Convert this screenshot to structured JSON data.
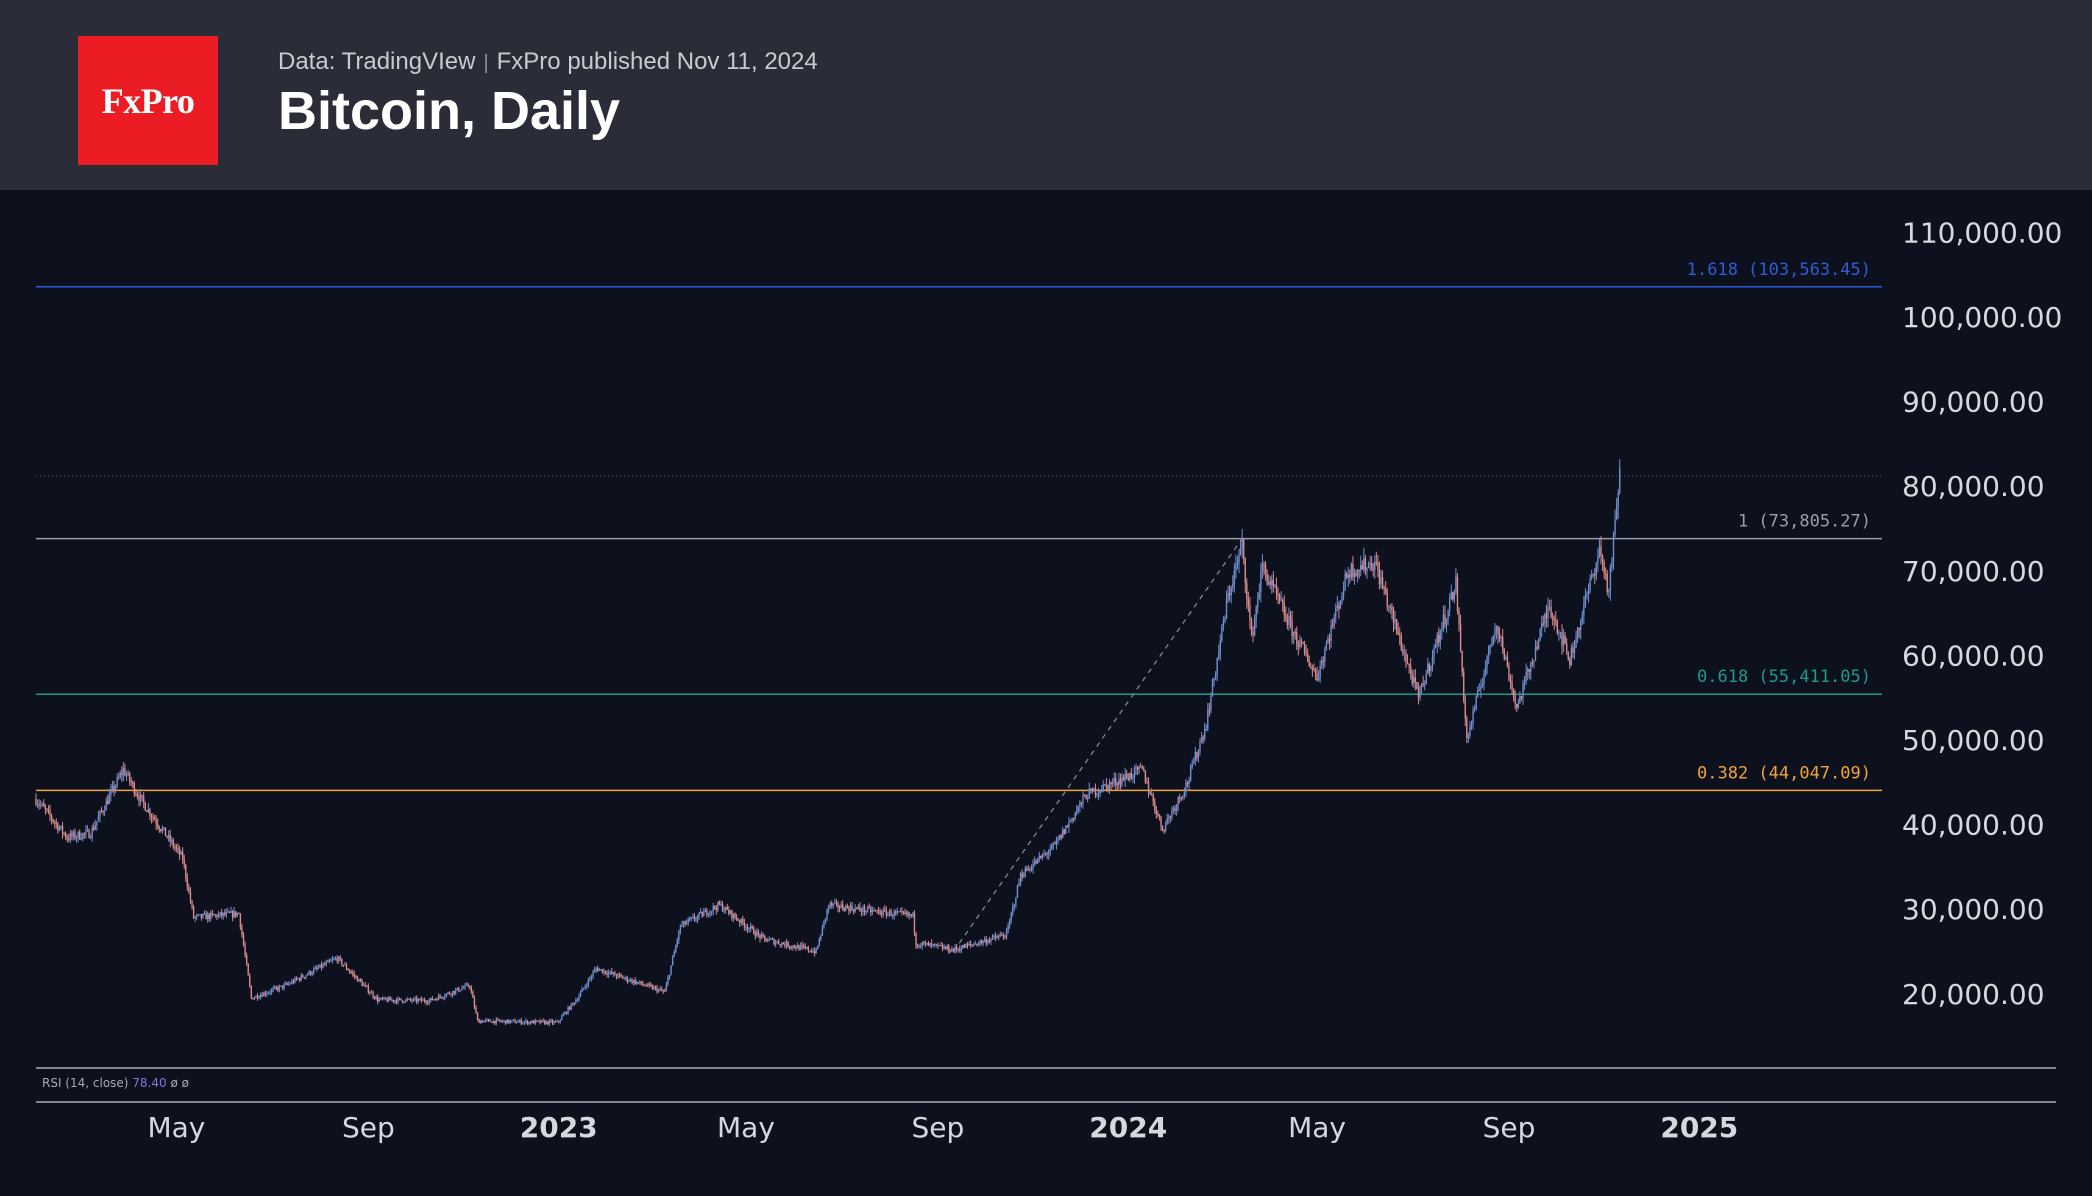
{
  "header": {
    "logo_text": "FxPro",
    "source": "Data: TradingVIew",
    "publisher": "FxPro published Nov 11, 2024",
    "title": "Bitcoin, Daily"
  },
  "chart_data": {
    "type": "candlestick",
    "title": "Bitcoin, Daily",
    "ylim": [
      11000,
      115000
    ],
    "y_ticks": [
      "110,000.00",
      "100,000.00",
      "90,000.00",
      "80,000.00",
      "70,000.00",
      "60,000.00",
      "50,000.00",
      "40,000.00",
      "30,000.00",
      "20,000.00"
    ],
    "y_tick_values": [
      110000,
      100000,
      90000,
      80000,
      70000,
      60000,
      50000,
      40000,
      30000,
      20000
    ],
    "x_range": [
      "2022-01-31",
      "2025-04-30"
    ],
    "x_ticks": [
      {
        "label": "May",
        "date": "2022-05-01",
        "year": false
      },
      {
        "label": "Sep",
        "date": "2022-09-01",
        "year": false
      },
      {
        "label": "2023",
        "date": "2023-01-01",
        "year": true
      },
      {
        "label": "May",
        "date": "2023-05-01",
        "year": false
      },
      {
        "label": "Sep",
        "date": "2023-09-01",
        "year": false
      },
      {
        "label": "2024",
        "date": "2024-01-01",
        "year": true
      },
      {
        "label": "May",
        "date": "2024-05-01",
        "year": false
      },
      {
        "label": "Sep",
        "date": "2024-09-01",
        "year": false
      },
      {
        "label": "2025",
        "date": "2025-01-01",
        "year": true
      }
    ],
    "price_path": [
      [
        "2022-01-31",
        43000
      ],
      [
        "2022-02-20",
        38500
      ],
      [
        "2022-03-07",
        39000
      ],
      [
        "2022-03-28",
        46500
      ],
      [
        "2022-04-08",
        43000
      ],
      [
        "2022-05-05",
        36000
      ],
      [
        "2022-05-12",
        29000
      ],
      [
        "2022-06-10",
        29500
      ],
      [
        "2022-06-18",
        19500
      ],
      [
        "2022-07-10",
        21000
      ],
      [
        "2022-08-12",
        24200
      ],
      [
        "2022-09-07",
        19300
      ],
      [
        "2022-10-10",
        19200
      ],
      [
        "2022-11-05",
        21000
      ],
      [
        "2022-11-10",
        16800
      ],
      [
        "2022-12-31",
        16600
      ],
      [
        "2023-01-13",
        19500
      ],
      [
        "2023-01-25",
        23000
      ],
      [
        "2023-03-10",
        20200
      ],
      [
        "2023-03-20",
        28000
      ],
      [
        "2023-04-14",
        30500
      ],
      [
        "2023-05-12",
        26500
      ],
      [
        "2023-06-15",
        25000
      ],
      [
        "2023-06-23",
        30500
      ],
      [
        "2023-07-20",
        29800
      ],
      [
        "2023-08-16",
        29200
      ],
      [
        "2023-08-18",
        26000
      ],
      [
        "2023-09-11",
        25200
      ],
      [
        "2023-10-15",
        27000
      ],
      [
        "2023-10-24",
        34000
      ],
      [
        "2023-11-15",
        37500
      ],
      [
        "2023-12-05",
        43500
      ],
      [
        "2024-01-10",
        46500
      ],
      [
        "2024-01-23",
        39500
      ],
      [
        "2024-02-08",
        45000
      ],
      [
        "2024-02-20",
        52000
      ],
      [
        "2024-03-05",
        67000
      ],
      [
        "2024-03-14",
        73000
      ],
      [
        "2024-03-20",
        62000
      ],
      [
        "2024-03-27",
        70500
      ],
      [
        "2024-04-15",
        63000
      ],
      [
        "2024-05-01",
        57500
      ],
      [
        "2024-05-21",
        70000
      ],
      [
        "2024-06-07",
        71000
      ],
      [
        "2024-07-05",
        55000
      ],
      [
        "2024-07-29",
        68500
      ],
      [
        "2024-08-05",
        50000
      ],
      [
        "2024-08-24",
        64000
      ],
      [
        "2024-09-06",
        53800
      ],
      [
        "2024-09-27",
        66000
      ],
      [
        "2024-10-10",
        59500
      ],
      [
        "2024-10-29",
        72500
      ],
      [
        "2024-11-04",
        67500
      ],
      [
        "2024-11-11",
        81500
      ]
    ],
    "fib_levels": [
      {
        "ratio": "1.618",
        "value": 103563.45,
        "label": "1.618 (103,563.45)",
        "color": "#2f5bd6"
      },
      {
        "ratio": "1",
        "value": 73805.27,
        "label": "1 (73,805.27)",
        "color": "#9a9da6"
      },
      {
        "ratio": "0.618",
        "value": 55411.05,
        "label": "0.618 (55,411.05)",
        "color": "#1e9a86"
      },
      {
        "ratio": "0.382",
        "value": 44047.09,
        "label": "0.382 (44,047.09)",
        "color": "#f2a33a"
      }
    ],
    "current_price_line": 81200,
    "trend_line": [
      [
        "2023-09-11",
        25000
      ],
      [
        "2024-03-14",
        73805.27
      ]
    ],
    "up_color": "#6f8fd0",
    "down_color": "#d98a8a"
  },
  "rsi": {
    "label": "RSI (14, close)",
    "value": "78.40",
    "extra": "ø ø"
  }
}
